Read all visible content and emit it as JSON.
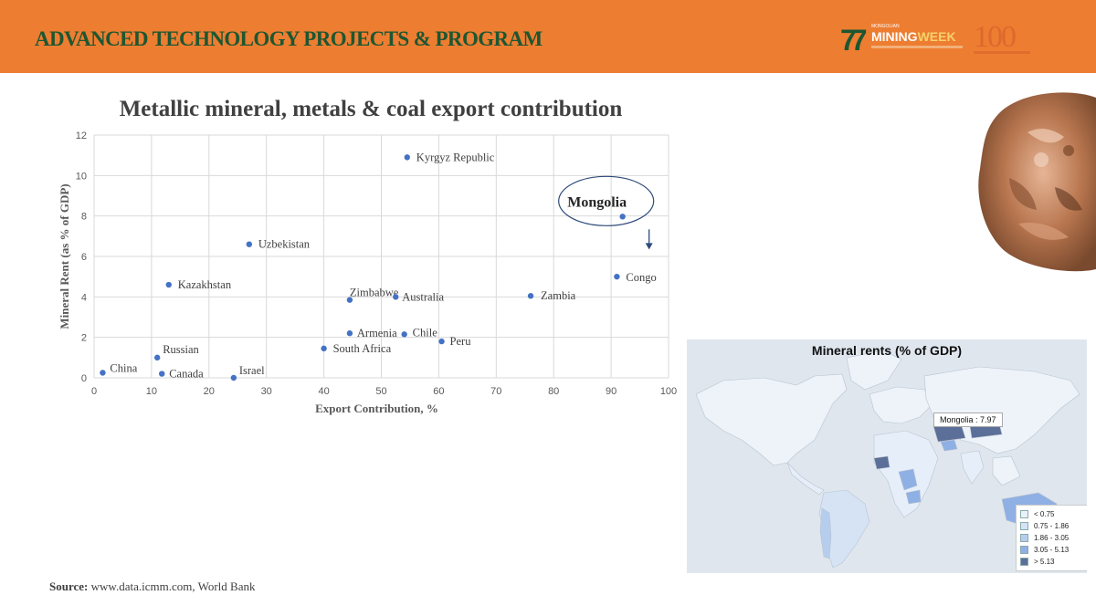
{
  "header": {
    "title": "ADVANCED TECHNOLOGY PROJECTS & PROGRAM",
    "logo_mmw": {
      "small": "MONGOLIAN",
      "mining": "MINING",
      "week": "WEEK"
    },
    "logo_anniversary": "100"
  },
  "colors": {
    "header_bg": "#ed7d31",
    "header_title": "#1e5631",
    "point": "#4472c4",
    "map_low": "#eaf1fb",
    "map_high": "#5b6f98"
  },
  "chart_data": {
    "type": "scatter",
    "title": "Metallic mineral, metals & coal export contribution",
    "xlabel": "Export  Contribution,  %",
    "ylabel": "Mineral Rent (as % of GDP)",
    "xlim": [
      0,
      100
    ],
    "ylim": [
      0,
      12
    ],
    "xticks": [
      0,
      10,
      20,
      30,
      40,
      50,
      60,
      70,
      80,
      90,
      100
    ],
    "yticks": [
      0,
      2,
      4,
      6,
      8,
      10,
      12
    ],
    "grid": true,
    "points": [
      {
        "label": "Kyrgyz Republic",
        "x": 54.5,
        "y": 10.9
      },
      {
        "label": "Mongolia",
        "x": 92,
        "y": 7.97
      },
      {
        "label": "Uzbekistan",
        "x": 27,
        "y": 6.6
      },
      {
        "label": "Congo",
        "x": 91,
        "y": 5.0
      },
      {
        "label": "Kazakhstan",
        "x": 13,
        "y": 4.6
      },
      {
        "label": "Zimbabwe",
        "x": 44.5,
        "y": 3.85
      },
      {
        "label": "Australia",
        "x": 52.5,
        "y": 4.0
      },
      {
        "label": "Zambia",
        "x": 76,
        "y": 4.05
      },
      {
        "label": "Armenia",
        "x": 44.5,
        "y": 2.2
      },
      {
        "label": "Chile",
        "x": 54,
        "y": 2.15
      },
      {
        "label": "Peru",
        "x": 60.5,
        "y": 1.8
      },
      {
        "label": "South Africa",
        "x": 40,
        "y": 1.45
      },
      {
        "label": "Russian",
        "x": 11,
        "y": 1.0
      },
      {
        "label": "China",
        "x": 1.5,
        "y": 0.25
      },
      {
        "label": "Canada",
        "x": 11.8,
        "y": 0.2
      },
      {
        "label": "Israel",
        "x": 24.3,
        "y": 0.0
      }
    ],
    "highlight": "Mongolia"
  },
  "source": {
    "label": "Source:",
    "text": " www.data.icmm.com, World Bank"
  },
  "map": {
    "title": "Mineral rents (% of GDP)",
    "tooltip": "Mongolia : 7.97",
    "legend": [
      {
        "label": "< 0.75",
        "color": "#eaf1fb"
      },
      {
        "label": "0.75 - 1.86",
        "color": "#d5e3f5"
      },
      {
        "label": "1.86 - 3.05",
        "color": "#b6cdee"
      },
      {
        "label": "3.05 - 5.13",
        "color": "#8fb0e4"
      },
      {
        "label": "> 5.13",
        "color": "#5b6f98"
      }
    ]
  }
}
